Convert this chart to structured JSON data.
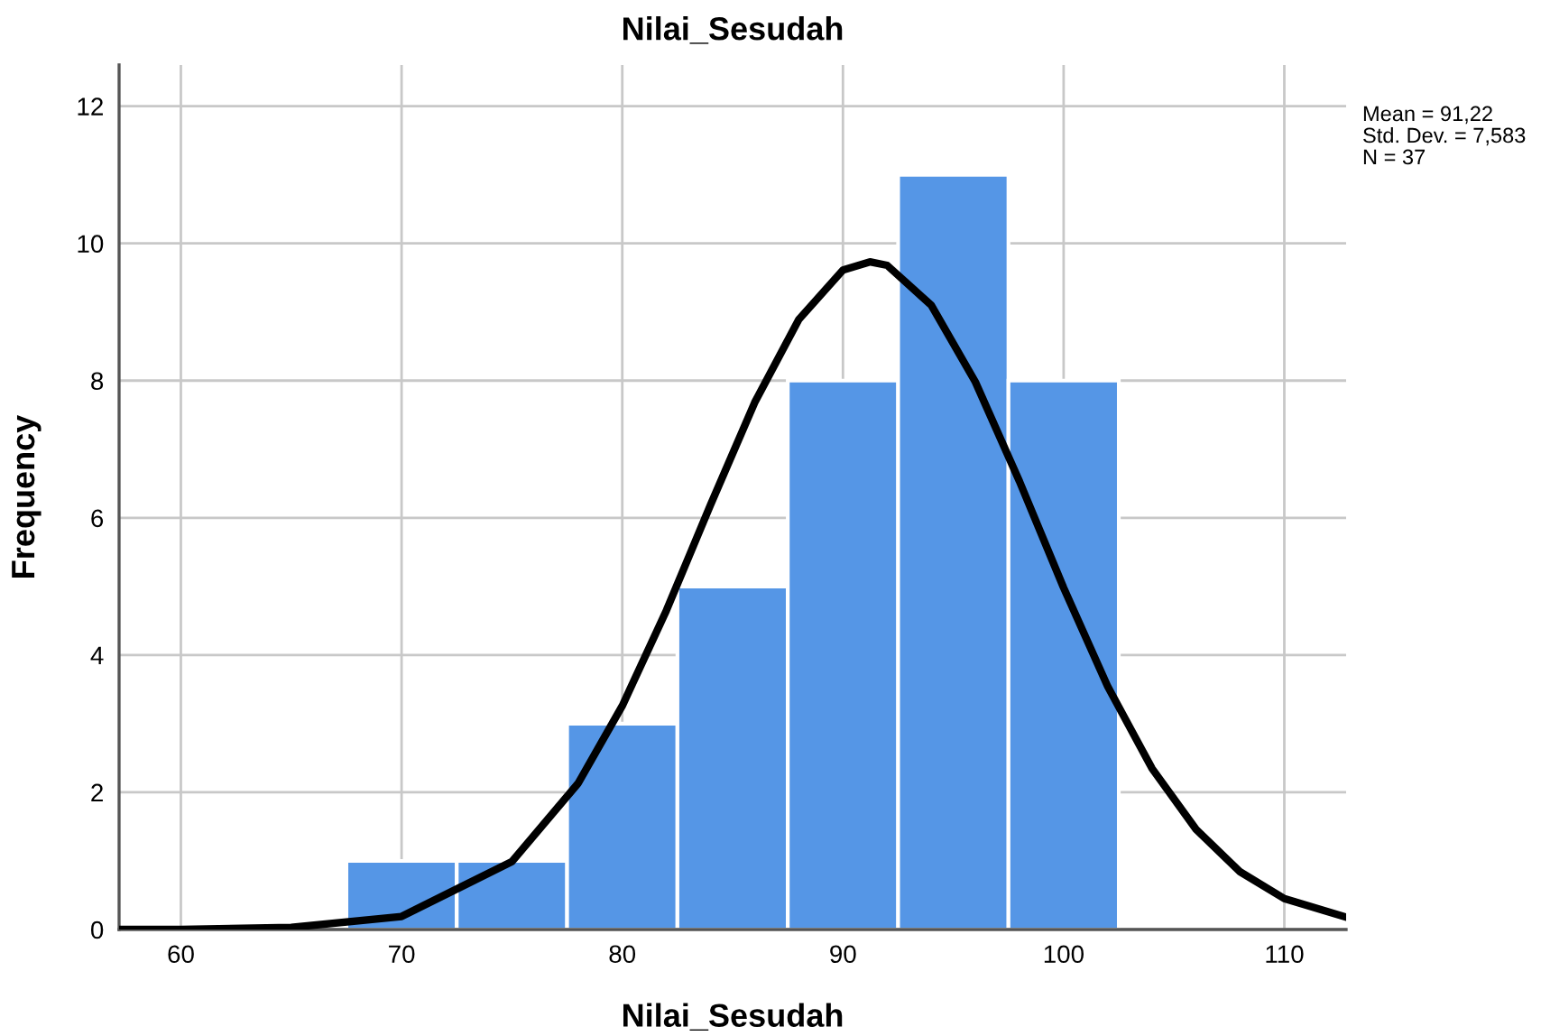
{
  "chart_data": {
    "type": "histogram",
    "title": "Nilai_Sesudah",
    "xlabel": "Nilai_Sesudah",
    "ylabel": "Frequency",
    "bins": [
      67.5,
      72.5,
      77.5,
      82.5,
      87.5,
      92.5,
      97.5,
      102.5
    ],
    "values": [
      1,
      1,
      3,
      5,
      8,
      11,
      8
    ],
    "color": "#5596e6",
    "series": [
      {
        "type": "line",
        "color": "#000000",
        "x": [
          57.2,
          60,
          65,
          70,
          75,
          78,
          80,
          82,
          84,
          86,
          88,
          90,
          91.22,
          92,
          94,
          96,
          98,
          100,
          102,
          104,
          106,
          108,
          110,
          112.8
        ],
        "values": [
          0.0,
          0.0,
          0.03,
          0.19,
          0.99,
          2.13,
          3.26,
          4.65,
          6.19,
          7.68,
          8.89,
          9.61,
          9.73,
          9.68,
          9.1,
          7.98,
          6.53,
          4.98,
          3.54,
          2.35,
          1.46,
          0.84,
          0.45,
          0.18
        ]
      }
    ],
    "xlim": [
      57.2,
      112.8
    ],
    "ylim": [
      0,
      12.6
    ],
    "xticks": [
      60,
      70,
      80,
      90,
      100,
      110
    ],
    "yticks": [
      0,
      2,
      4,
      6,
      8,
      10,
      12
    ],
    "grid": true,
    "annotations": [
      "Mean = 91,22",
      "Std. Dev. = 7,583",
      "N = 37"
    ]
  }
}
